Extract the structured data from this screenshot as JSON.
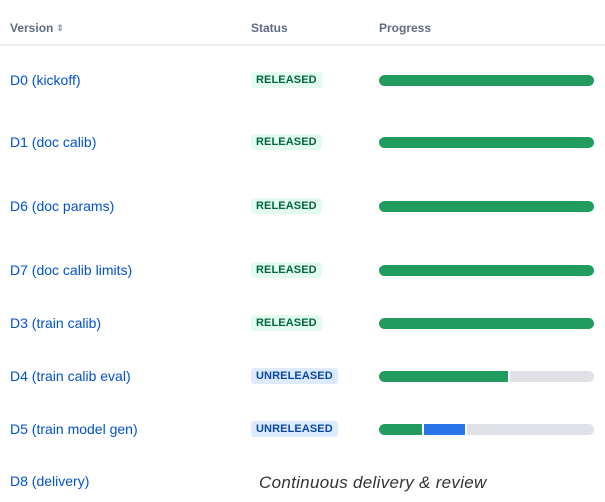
{
  "table": {
    "headers": {
      "version": "Version",
      "status": "Status",
      "progress": "Progress",
      "sort_icon": "sort-icon"
    },
    "rows": [
      {
        "name": "D0 (kickoff)",
        "status": "RELEASED",
        "progress": {
          "done": 1.0,
          "in_progress": 0.0
        }
      },
      {
        "name": "D1 (doc calib)",
        "status": "RELEASED",
        "progress": {
          "done": 1.0,
          "in_progress": 0.0
        }
      },
      {
        "name": "D6 (doc params)",
        "status": "RELEASED",
        "progress": {
          "done": 1.0,
          "in_progress": 0.0
        }
      },
      {
        "name": "D7 (doc calib limits)",
        "status": "RELEASED",
        "progress": {
          "done": 1.0,
          "in_progress": 0.0
        }
      },
      {
        "name": "D3 (train calib)",
        "status": "RELEASED",
        "progress": {
          "done": 1.0,
          "in_progress": 0.0
        }
      },
      {
        "name": "D4 (train calib eval)",
        "status": "UNRELEASED",
        "progress": {
          "done": 0.6,
          "in_progress": 0.0
        }
      },
      {
        "name": "D5 (train model gen)",
        "status": "UNRELEASED",
        "progress": {
          "done": 0.2,
          "in_progress": 0.2
        }
      },
      {
        "name": "D8 (delivery)",
        "note": "Continuous delivery & review"
      }
    ]
  },
  "colors": {
    "link": "#0052cc",
    "done": "#229b5f",
    "in_progress": "#2a73e8",
    "todo": "#dfe1e6",
    "released_bg": "#e3fcef",
    "unreleased_bg": "#deebff"
  }
}
